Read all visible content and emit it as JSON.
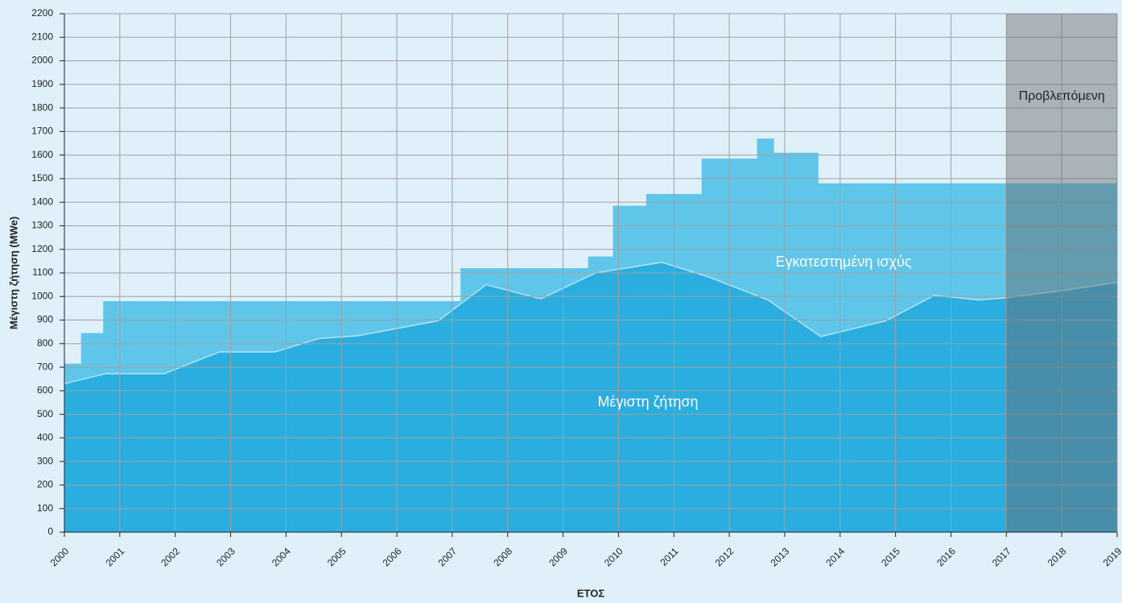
{
  "chart_data": {
    "type": "area",
    "y_label": "Μέγιστη ζήτηση (MWe)",
    "x_label": "ΕΤΟΣ",
    "xlim": [
      2000,
      2019
    ],
    "xticks": [
      2000,
      2001,
      2002,
      2003,
      2004,
      2005,
      2006,
      2007,
      2008,
      2009,
      2010,
      2011,
      2012,
      2013,
      2014,
      2015,
      2016,
      2017,
      2018,
      2019
    ],
    "ylim": [
      0,
      2200
    ],
    "yticks": [
      0,
      100,
      200,
      300,
      400,
      500,
      600,
      700,
      800,
      900,
      1000,
      1100,
      1200,
      1300,
      1400,
      1500,
      1600,
      1700,
      1800,
      1900,
      2000,
      2100,
      2200
    ],
    "grid": true,
    "series": [
      {
        "name": "Εγκατεστημένη ισχύς",
        "color": "#5fc6ea",
        "step": true,
        "bins": [
          2000,
          2000.3,
          2000.7,
          2007.15,
          2009.45,
          2009.9,
          2010.5,
          2011.5,
          2012.5,
          2012.8,
          2013.6,
          2019
        ],
        "values": [
          715,
          845,
          980,
          1120,
          1170,
          1385,
          1435,
          1585,
          1670,
          1610,
          1480
        ]
      },
      {
        "name": "Μέγιστη ζήτηση",
        "color": "#2aaee0",
        "line_color": "#b5e2f5",
        "x": [
          2000,
          2000.74,
          2001.8,
          2002.8,
          2003.8,
          2004.6,
          2005.29,
          2006.75,
          2007.61,
          2008.6,
          2009.59,
          2010.78,
          2011.6,
          2012.7,
          2013.65,
          2014.83,
          2015.7,
          2016.5,
          2017,
          2018,
          2019
        ],
        "values": [
          630,
          672,
          672,
          765,
          765,
          822,
          833,
          897,
          1050,
          990,
          1100,
          1145,
          1085,
          985,
          830,
          897,
          1005,
          985,
          995,
          1025,
          1060
        ]
      }
    ],
    "shaded_region": {
      "xlim": [
        2017,
        2019
      ],
      "label": "Προβλεπόμενη",
      "color": "rgba(105,105,105,0.45)"
    }
  }
}
